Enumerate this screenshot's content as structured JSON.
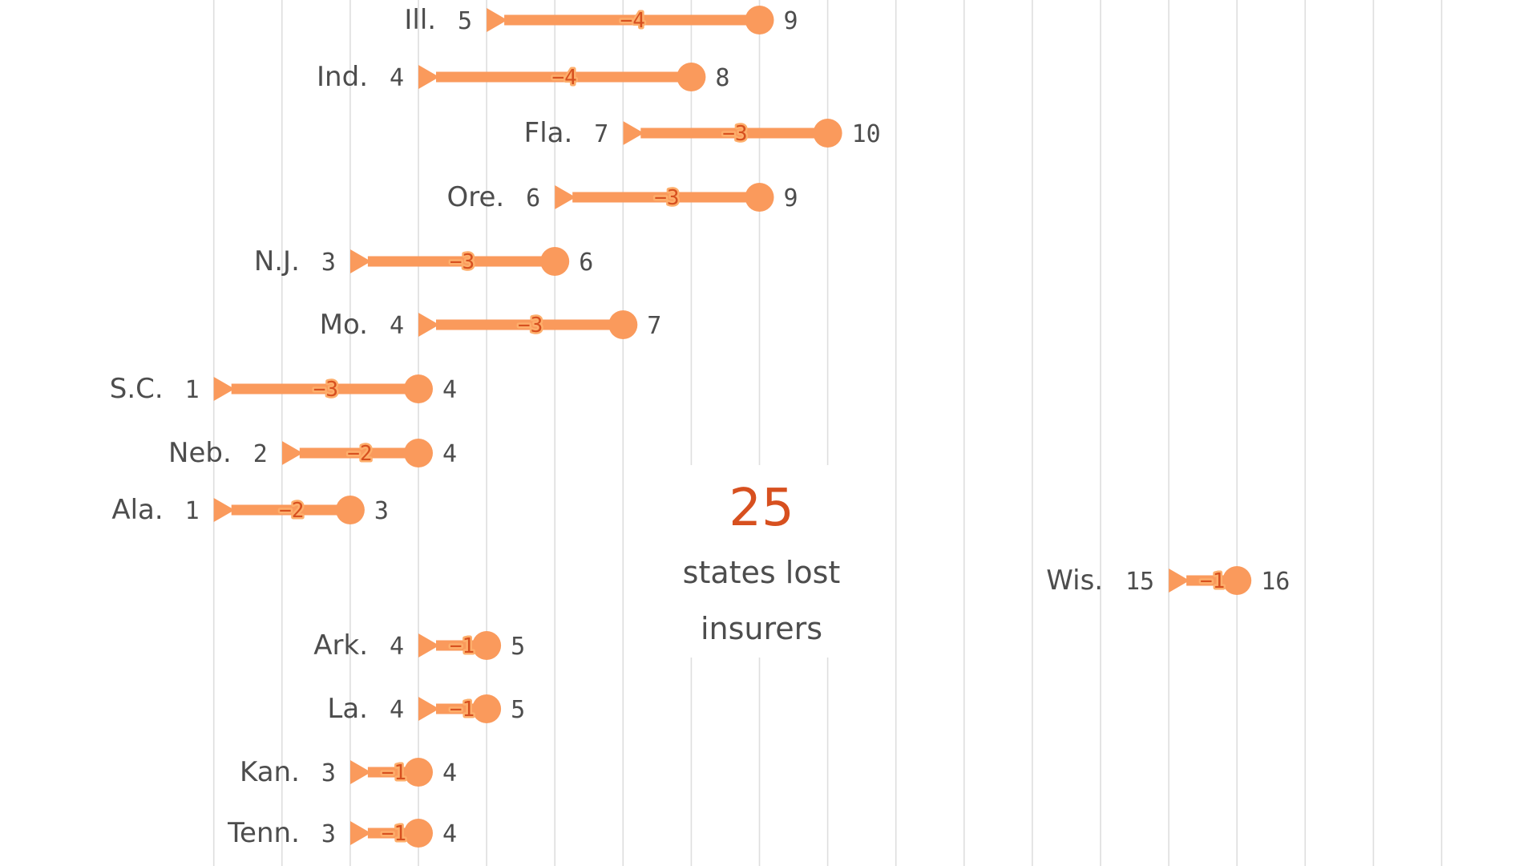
{
  "chart_data": {
    "type": "dumbbell",
    "title": "",
    "colors": {
      "arrow": "#fa9a5c",
      "diff_text": "#d7501f",
      "annotation_number": "#d7501f",
      "grid": "#dedede",
      "text": "#4d4d4d"
    },
    "grid": true,
    "categories": [
      "Ill.",
      "Ind.",
      "Fla.",
      "Ore.",
      "N.J.",
      "Mo.",
      "S.C.",
      "Neb.",
      "Ala.",
      "Wis.",
      "Ark.",
      "La.",
      "Kan.",
      "Tenn."
    ],
    "series": [
      {
        "values": [
          9,
          8,
          10,
          9,
          6,
          7,
          4,
          4,
          3,
          16,
          5,
          5,
          4,
          4
        ]
      },
      {
        "values": [
          5,
          4,
          7,
          6,
          3,
          4,
          1,
          2,
          1,
          15,
          4,
          4,
          3,
          3
        ]
      }
    ],
    "rows": [
      {
        "state": "Ill.",
        "from": 9,
        "to": 5,
        "change": "−4"
      },
      {
        "state": "Ind.",
        "from": 8,
        "to": 4,
        "change": "−4"
      },
      {
        "state": "Fla.",
        "from": 10,
        "to": 7,
        "change": "−3"
      },
      {
        "state": "Ore.",
        "from": 9,
        "to": 6,
        "change": "−3"
      },
      {
        "state": "N.J.",
        "from": 6,
        "to": 3,
        "change": "−3"
      },
      {
        "state": "Mo.",
        "from": 7,
        "to": 4,
        "change": "−3"
      },
      {
        "state": "S.C.",
        "from": 4,
        "to": 1,
        "change": "−3"
      },
      {
        "state": "Neb.",
        "from": 4,
        "to": 2,
        "change": "−2"
      },
      {
        "state": "Ala.",
        "from": 3,
        "to": 1,
        "change": "−2"
      },
      {
        "state": "Wis.",
        "from": 16,
        "to": 15,
        "change": "−1"
      },
      {
        "state": "Ark.",
        "from": 5,
        "to": 4,
        "change": "−1"
      },
      {
        "state": "La.",
        "from": 5,
        "to": 4,
        "change": "−1"
      },
      {
        "state": "Kan.",
        "from": 4,
        "to": 3,
        "change": "−1"
      },
      {
        "state": "Tenn.",
        "from": 4,
        "to": 3,
        "change": "−1"
      }
    ],
    "annotation": {
      "number": "25",
      "line1": "states lost",
      "line2": "insurers"
    }
  }
}
